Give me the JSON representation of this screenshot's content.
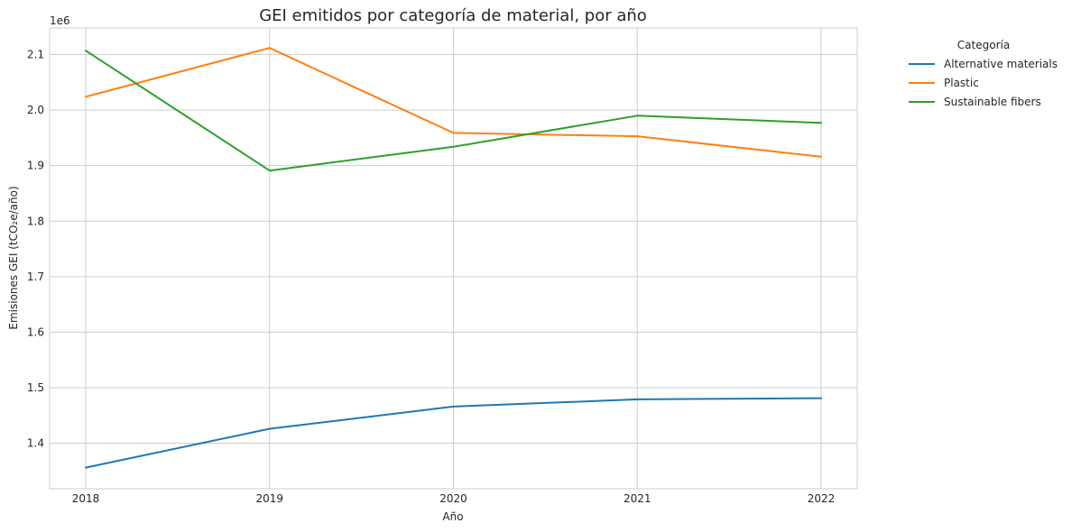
{
  "chart_data": {
    "type": "line",
    "title": "GEI emitidos por categoría de material, por año",
    "xlabel": "Año",
    "ylabel": "Emisiones GEI (tCO₂e/año)",
    "y_offset_label": "1e6",
    "x": [
      2018,
      2019,
      2020,
      2021,
      2022
    ],
    "x_ticks": [
      "2018",
      "2019",
      "2020",
      "2021",
      "2022"
    ],
    "y_ticks": [
      "1.4",
      "1.5",
      "1.6",
      "1.7",
      "1.8",
      "1.9",
      "2.0",
      "2.1"
    ],
    "ylim": [
      1318000,
      2148000
    ],
    "grid": true,
    "legend": {
      "title": "Categoría",
      "placement": "outside-top-right"
    },
    "series": [
      {
        "name": "Alternative materials",
        "color": "#1f77b4",
        "values": [
          1356000,
          1426000,
          1466000,
          1479000,
          1481000
        ]
      },
      {
        "name": "Plastic",
        "color": "#ff7f0e",
        "values": [
          2024000,
          2112000,
          1959000,
          1953000,
          1916000
        ]
      },
      {
        "name": "Sustainable fibers",
        "color": "#2ca02c",
        "values": [
          2107000,
          1891000,
          1934000,
          1990000,
          1977000
        ]
      }
    ]
  }
}
